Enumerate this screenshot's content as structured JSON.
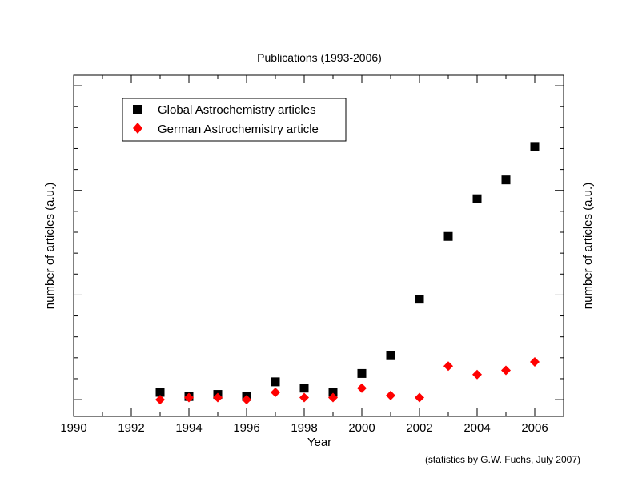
{
  "chart_data": {
    "type": "scatter",
    "title": "Publications (1993-2006)",
    "xlabel": "Year",
    "ylabel": "number of articles (a.u.)",
    "ylabel_right": "number of articles (a.u.)",
    "xlim": [
      1990,
      2007
    ],
    "ylim": [
      -0.8,
      15.5
    ],
    "x_ticks": [
      1990,
      1992,
      1994,
      1996,
      1998,
      2000,
      2002,
      2004,
      2006
    ],
    "y_tick_labels_shown": false,
    "grid": false,
    "legend_position": "top-left",
    "footnote": "(statistics by G.W. Fuchs, July 2007)",
    "series": [
      {
        "name": "Global Astrochemistry articles",
        "marker": "square",
        "color": "#000000",
        "x": [
          1993,
          1994,
          1995,
          1996,
          1997,
          1998,
          1999,
          2000,
          2001,
          2002,
          2003,
          2004,
          2005,
          2006
        ],
        "y": [
          0.35,
          0.15,
          0.25,
          0.15,
          0.85,
          0.55,
          0.35,
          1.25,
          2.1,
          4.8,
          7.8,
          9.6,
          10.5,
          12.1
        ]
      },
      {
        "name": "German Astrochemistry article",
        "marker": "diamond",
        "color": "#ff0000",
        "x": [
          1993,
          1994,
          1995,
          1996,
          1997,
          1998,
          1999,
          2000,
          2001,
          2002,
          2003,
          2004,
          2005,
          2006
        ],
        "y": [
          0.0,
          0.1,
          0.1,
          0.0,
          0.35,
          0.1,
          0.1,
          0.55,
          0.2,
          0.1,
          1.6,
          1.2,
          1.4,
          1.8
        ]
      }
    ]
  }
}
